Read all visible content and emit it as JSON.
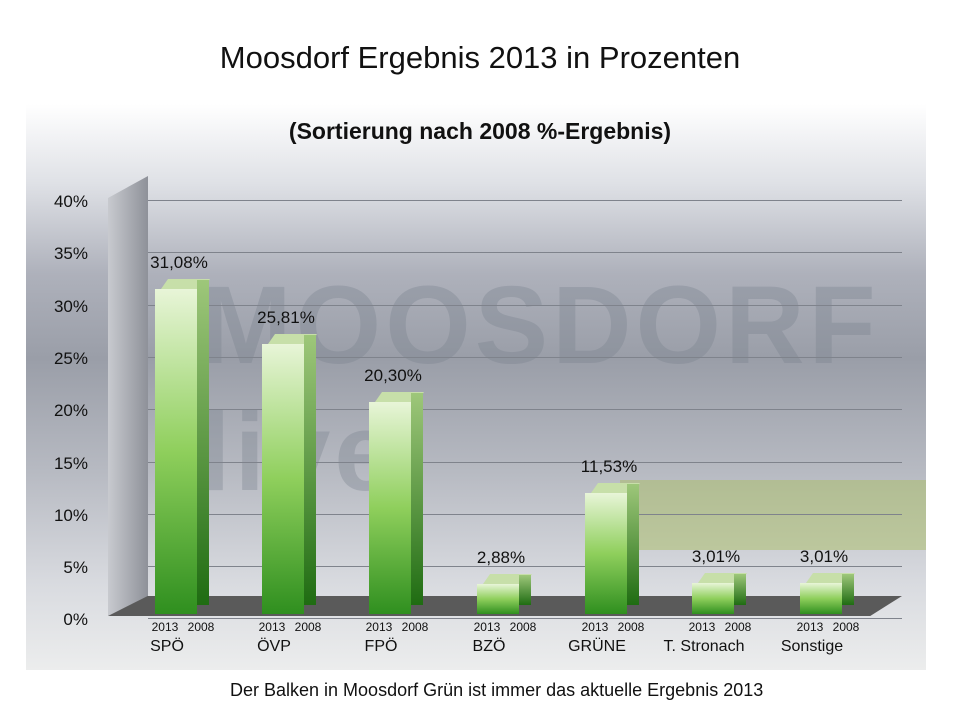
{
  "title": "Moosdorf  Ergebnis 2013 in Prozenten",
  "subtitle": "(Sortierung nach 2008 %-Ergebnis)",
  "footnote": "Der Balken in Moosdorf Grün ist immer das aktuelle Ergebnis 2013",
  "watermark": "MOOSDORF live",
  "colors": {
    "bar_green": "#3a9a2a",
    "bar_light": "#e8f5d8"
  },
  "yaxis": {
    "ticks": [
      "40%",
      "35%",
      "30%",
      "25%",
      "20%",
      "15%",
      "10%",
      "5%",
      "0%"
    ]
  },
  "year_labels": {
    "a": "2013",
    "b": "2008"
  },
  "chart_data": {
    "type": "bar",
    "title": "Moosdorf  Ergebnis 2013 in Prozenten",
    "subtitle": "(Sortierung nach 2008 %-Ergebnis)",
    "categories": [
      "SPÖ",
      "ÖVP",
      "FPÖ",
      "BZÖ",
      "GRÜNE",
      "T. Stronach",
      "Sonstige"
    ],
    "series": [
      {
        "name": "2013",
        "values": [
          31.08,
          25.81,
          20.3,
          2.88,
          11.53,
          3.01,
          3.01
        ]
      }
    ],
    "value_labels": [
      "31,08%",
      "25,81%",
      "20,30%",
      "2,88%",
      "11,53%",
      "3,01%",
      "3,01%"
    ],
    "sub_labels": [
      "2013",
      "2008"
    ],
    "xlabel": "",
    "ylabel": "",
    "ylim": [
      0,
      40
    ],
    "grid": true,
    "annotation": "Der Balken in Moosdorf Grün ist immer das aktuelle Ergebnis 2013"
  },
  "bars": [
    {
      "party": "SPÖ",
      "label": "31,08%",
      "value": 31.08
    },
    {
      "party": "ÖVP",
      "label": "25,81%",
      "value": 25.81
    },
    {
      "party": "FPÖ",
      "label": "20,30%",
      "value": 20.3
    },
    {
      "party": "BZÖ",
      "label": "2,88%",
      "value": 2.88
    },
    {
      "party": "GRÜNE",
      "label": "11,53%",
      "value": 11.53
    },
    {
      "party": "T. Stronach",
      "label": "3,01%",
      "value": 3.01
    },
    {
      "party": "Sonstige",
      "label": "3,01%",
      "value": 3.01
    }
  ]
}
